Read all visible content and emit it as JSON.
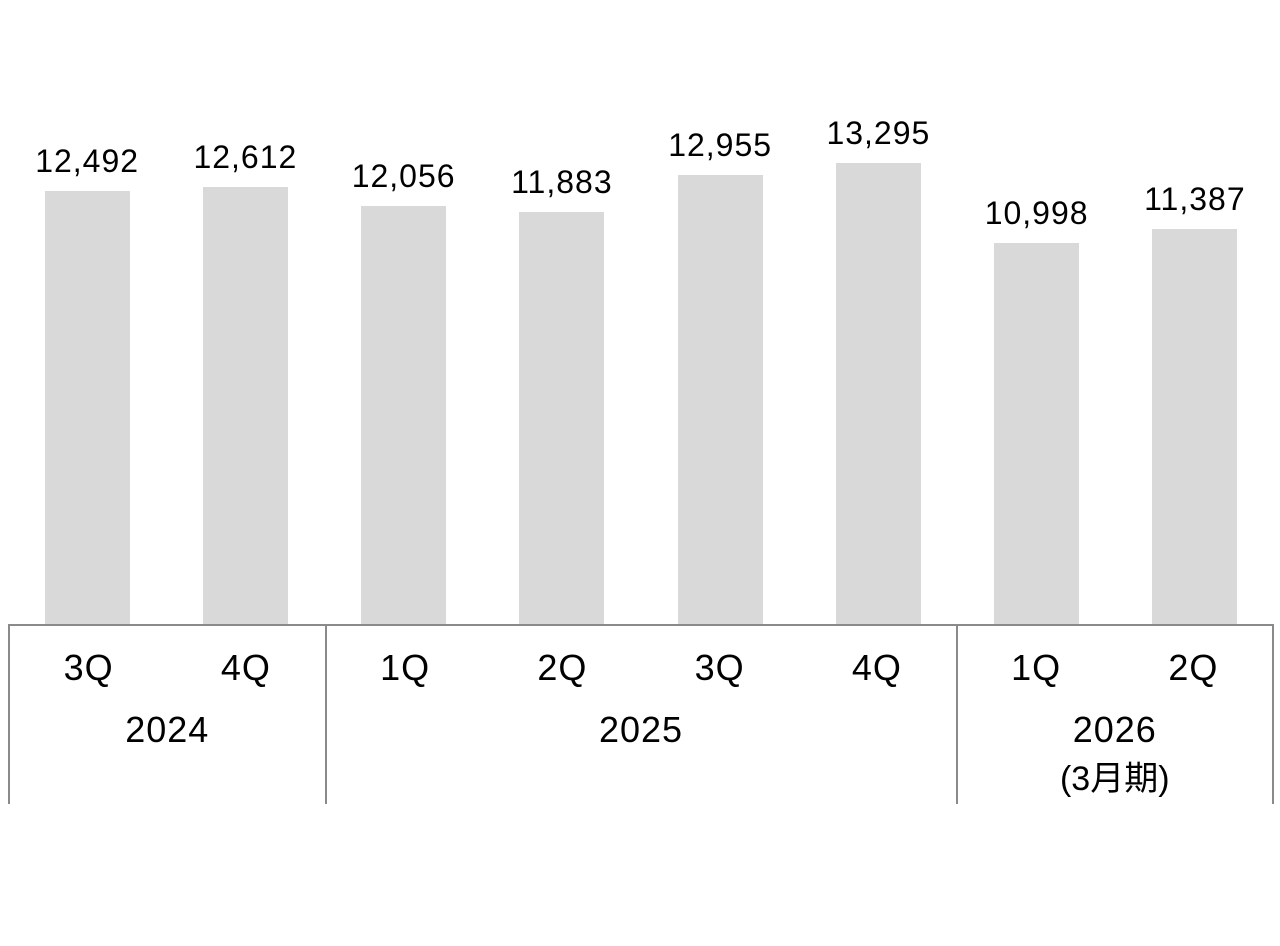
{
  "chart_data": {
    "type": "bar",
    "title": "",
    "categories": [
      "3Q 2024",
      "4Q 2024",
      "1Q 2025",
      "2Q 2025",
      "3Q 2025",
      "4Q 2025",
      "1Q 2026",
      "2Q 2026"
    ],
    "quarter_labels": [
      "3Q",
      "4Q",
      "1Q",
      "2Q",
      "3Q",
      "4Q",
      "1Q",
      "2Q"
    ],
    "values": [
      12492,
      12612,
      12056,
      11883,
      12955,
      13295,
      10998,
      11387
    ],
    "value_labels": [
      "12,492",
      "12,612",
      "12,056",
      "11,883",
      "12,955",
      "13,295",
      "10,998",
      "11,387"
    ],
    "groups": [
      {
        "year": "2024",
        "suffix": "",
        "quarter_count": 2,
        "quarters": [
          "3Q",
          "4Q"
        ]
      },
      {
        "year": "2025",
        "suffix": "",
        "quarter_count": 4,
        "quarters": [
          "1Q",
          "2Q",
          "3Q",
          "4Q"
        ]
      },
      {
        "year": "2026",
        "suffix": "(3月期)",
        "quarter_count": 2,
        "quarters": [
          "1Q",
          "2Q"
        ]
      }
    ],
    "xlabel": "",
    "ylabel": "",
    "ylim": [
      0,
      13295
    ],
    "grid": false,
    "legend": "none",
    "bar_color": "#d9d9d9",
    "label_color": "#000000",
    "axis_line_color": "#8a8a8a"
  }
}
